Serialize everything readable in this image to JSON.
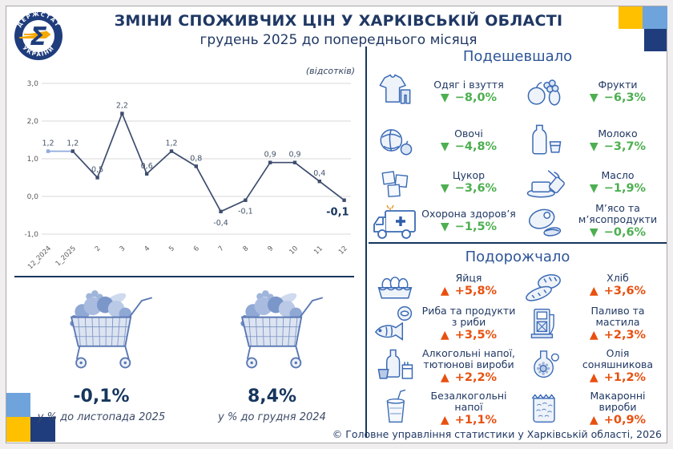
{
  "header": {
    "title": "ЗМІНИ СПОЖИВЧИХ ЦІН У ХАРКІВСЬКІЙ ОБЛАСТІ",
    "subtitle": "грудень 2025 до попереднього місяця",
    "logo": {
      "arc_top": "ДЕРЖСТАТ",
      "arc_bottom": "УКРАЇНИ",
      "symbol": "Σ"
    }
  },
  "chart_data": {
    "type": "line",
    "unit_label": "(відсотків)",
    "x": [
      "12_2024",
      "1_2025",
      "2",
      "3",
      "4",
      "5",
      "6",
      "7",
      "8",
      "9",
      "10",
      "11",
      "12"
    ],
    "values": [
      1.2,
      1.2,
      0.5,
      2.2,
      0.6,
      1.2,
      0.8,
      -0.4,
      -0.1,
      0.9,
      0.9,
      0.4,
      -0.1
    ],
    "labels": [
      "1,2",
      "1,2",
      "0,5",
      "2,2",
      "0,6",
      "1,2",
      "0,8",
      "-0,4",
      "-0,1",
      "0,9",
      "0,9",
      "0,4",
      "-0,1"
    ],
    "ylim": [
      -1.0,
      3.0
    ],
    "yticks": [
      "3,0",
      "2,0",
      "1,0",
      "0,0",
      "-1,0"
    ],
    "grid": true,
    "legend": "none",
    "line_color": "#3d4d6e",
    "first_segment_color": "#8faadc",
    "emphasize_last_label": true
  },
  "cheaper": {
    "title": "Подешевшало",
    "arrow_color": "#4CAF50",
    "triangle": "▼",
    "items": [
      {
        "label": "Одяг і взуття",
        "value": "−8,0%",
        "icon": "clothes-icon"
      },
      {
        "label": "Фрукти",
        "value": "−6,3%",
        "icon": "fruits-icon"
      },
      {
        "label": "Овочі",
        "value": "−4,8%",
        "icon": "vegetables-icon"
      },
      {
        "label": "Молоко",
        "value": "−3,7%",
        "icon": "milk-icon"
      },
      {
        "label": "Цукор",
        "value": "−3,6%",
        "icon": "sugar-icon"
      },
      {
        "label": "Масло",
        "value": "−1,9%",
        "icon": "butter-icon"
      },
      {
        "label": "Охорона здоров’я",
        "value": "−1,5%",
        "icon": "ambulance-icon"
      },
      {
        "label": "М’ясо та м’ясопродукти",
        "value": "−0,6%",
        "icon": "meat-icon"
      }
    ]
  },
  "expensive": {
    "title": "Подорожчало",
    "arrow_color": "#E8500F",
    "triangle": "▲",
    "items": [
      {
        "label": "Яйця",
        "value": "+5,8%",
        "icon": "eggs-icon"
      },
      {
        "label": "Хліб",
        "value": "+3,6%",
        "icon": "bread-icon"
      },
      {
        "label": "Риба та продукти з риби",
        "value": "+3,5%",
        "icon": "fish-icon"
      },
      {
        "label": "Паливо та мастила",
        "value": "+2,3%",
        "icon": "fuel-icon"
      },
      {
        "label": "Алкогольні напої, тютюнові вироби",
        "value": "+2,2%",
        "icon": "alcohol-tobacco-icon"
      },
      {
        "label": "Олія соняшникова",
        "value": "+1,2%",
        "icon": "sunflower-oil-icon"
      },
      {
        "label": "Безалкогольні напої",
        "value": "+1,1%",
        "icon": "soft-drink-icon"
      },
      {
        "label": "Макаронні вироби",
        "value": "+0,9%",
        "icon": "pasta-icon"
      }
    ]
  },
  "summary": {
    "items": [
      {
        "value": "-0,1%",
        "caption": "у % до листопада 2025"
      },
      {
        "value": "8,4%",
        "caption": "у % до грудня 2024"
      }
    ]
  },
  "footer": "© Головне управління статистики у Харківській області, 2026"
}
